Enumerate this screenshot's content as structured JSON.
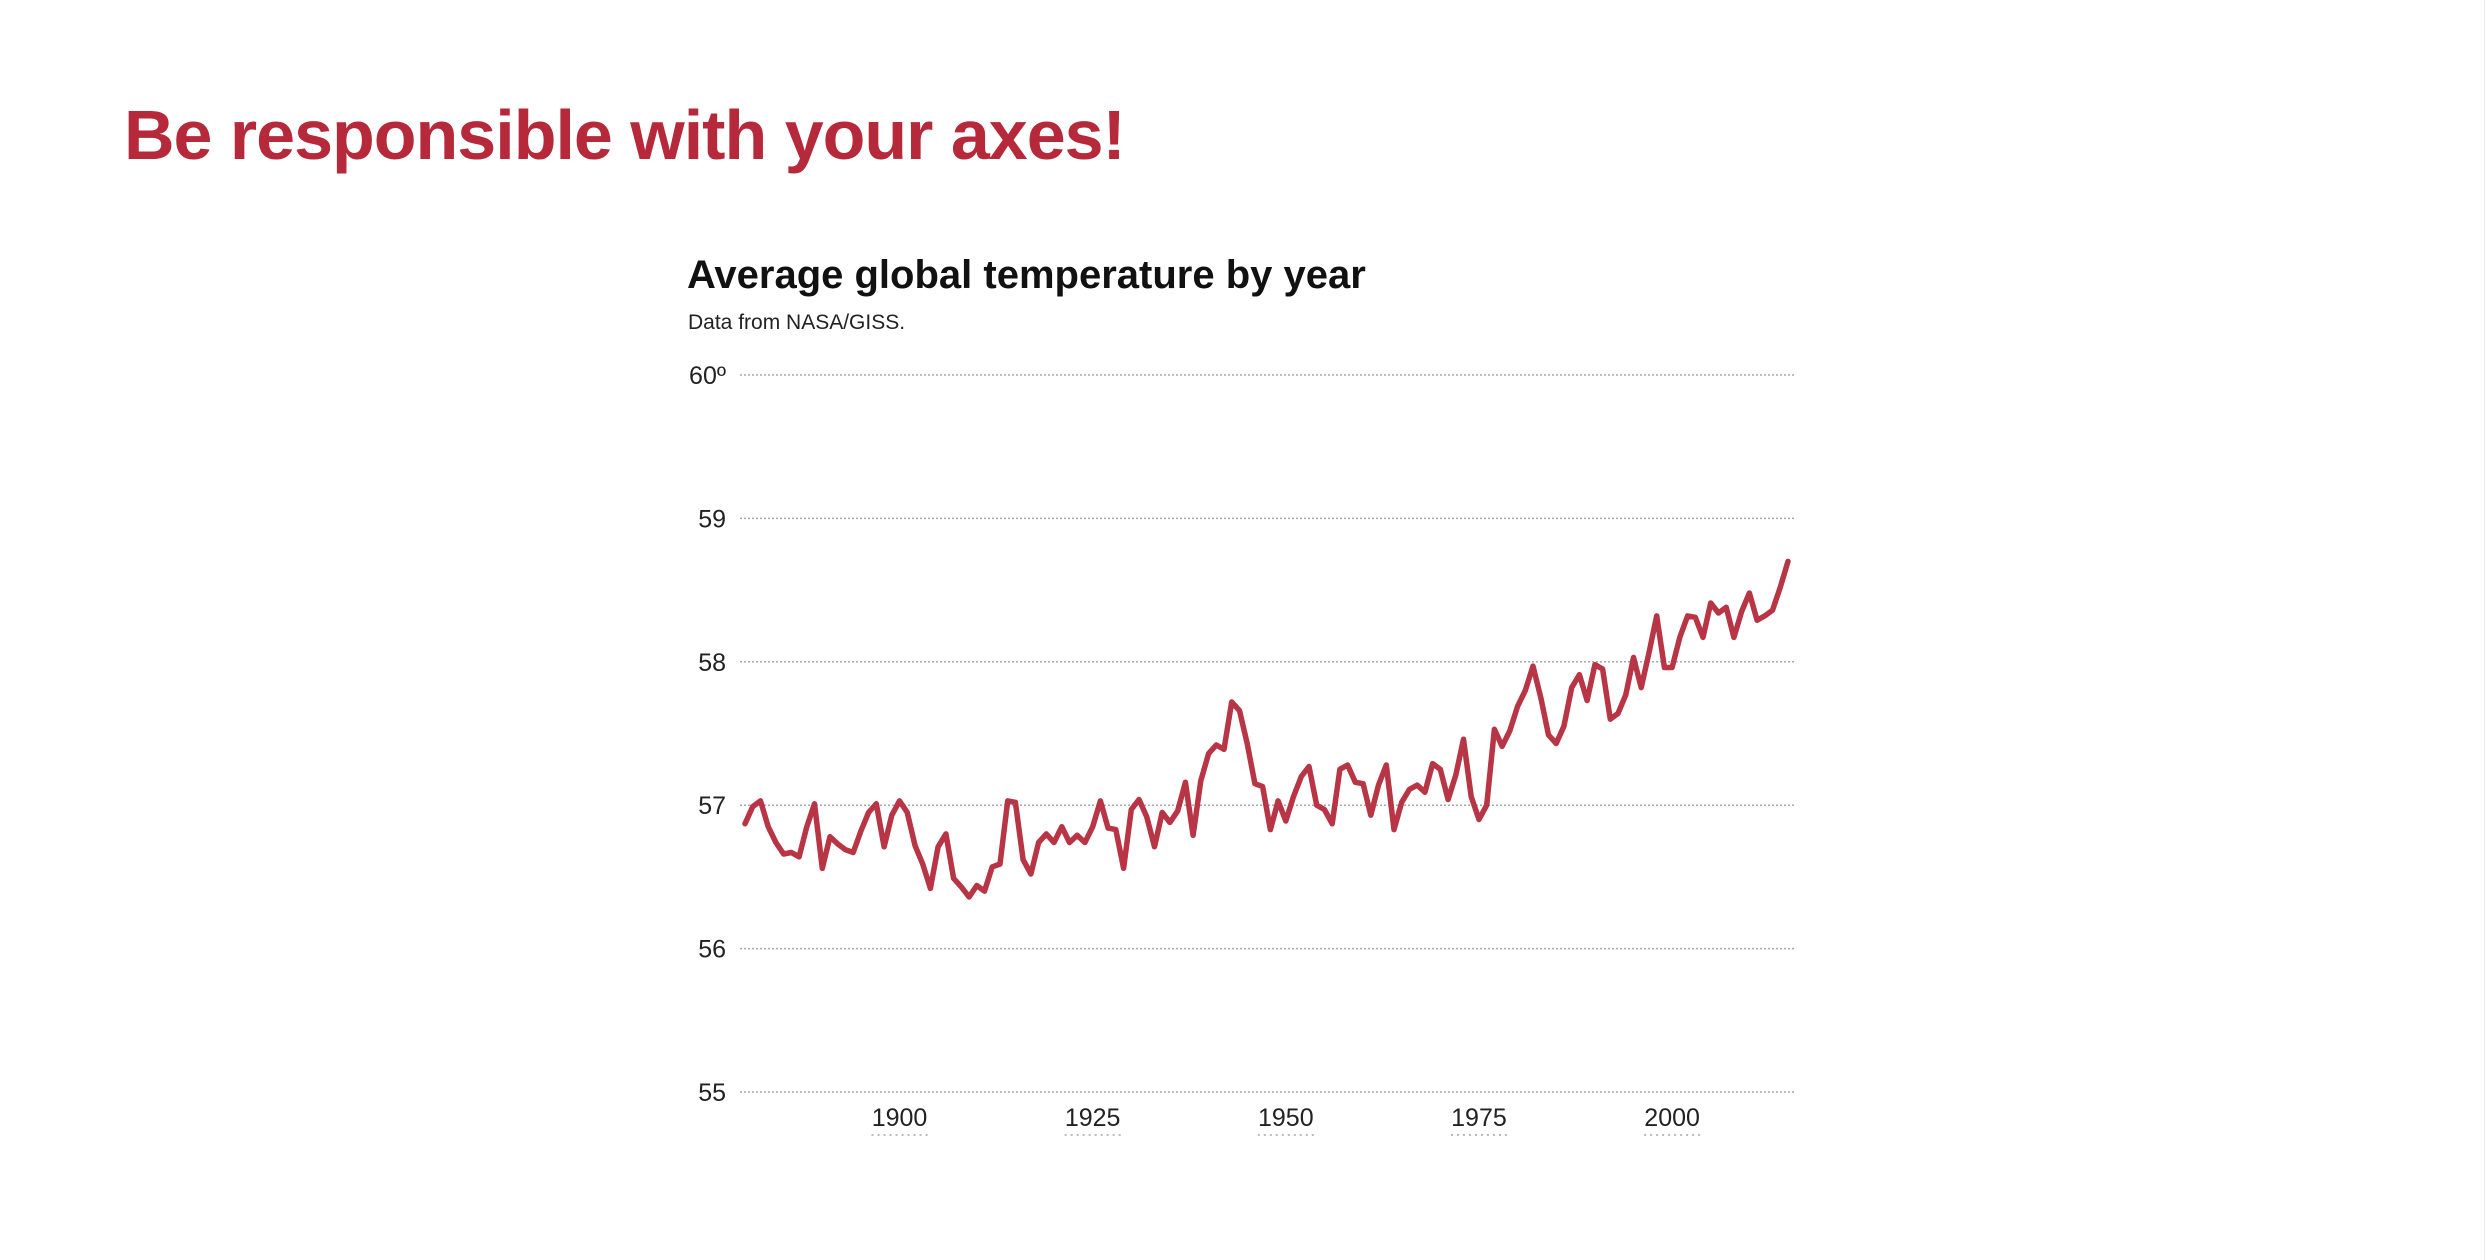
{
  "page": {
    "heading": "Be responsible with your axes!"
  },
  "colors": {
    "accent": "#b5293a",
    "line": "#b73545",
    "grid": "#a8a8a8",
    "text": "#222222"
  },
  "chart_data": {
    "type": "line",
    "title": "Average global temperature by year",
    "subtitle": "Data from NASA/GISS.",
    "xlabel": "",
    "ylabel": "",
    "xlim": [
      1880,
      2015
    ],
    "ylim": [
      55,
      60
    ],
    "y_ticks": [
      {
        "value": 60,
        "label": "60º"
      },
      {
        "value": 59,
        "label": "59"
      },
      {
        "value": 58,
        "label": "58"
      },
      {
        "value": 57,
        "label": "57"
      },
      {
        "value": 56,
        "label": "56"
      },
      {
        "value": 55,
        "label": "55"
      }
    ],
    "x_ticks": [
      {
        "value": 1900,
        "label": "1900"
      },
      {
        "value": 1925,
        "label": "1925"
      },
      {
        "value": 1950,
        "label": "1950"
      },
      {
        "value": 1975,
        "label": "1975"
      },
      {
        "value": 2000,
        "label": "2000"
      }
    ],
    "grid": "horizontal-dotted",
    "legend": "none",
    "series": [
      {
        "x": [
          1880,
          1881,
          1882,
          1883,
          1884,
          1885,
          1886,
          1887,
          1888,
          1889,
          1890,
          1891,
          1892,
          1893,
          1894,
          1895,
          1896,
          1897,
          1898,
          1899,
          1900,
          1901,
          1902,
          1903,
          1904,
          1905,
          1906,
          1907,
          1908,
          1909,
          1910,
          1911,
          1912,
          1913,
          1914,
          1915,
          1916,
          1917,
          1918,
          1919,
          1920,
          1921,
          1922,
          1923,
          1924,
          1925,
          1926,
          1927,
          1928,
          1929,
          1930,
          1931,
          1932,
          1933,
          1934,
          1935,
          1936,
          1937,
          1938,
          1939,
          1940,
          1941,
          1942,
          1943,
          1944,
          1945,
          1946,
          1947,
          1948,
          1949,
          1950,
          1951,
          1952,
          1953,
          1954,
          1955,
          1956,
          1957,
          1958,
          1959,
          1960,
          1961,
          1962,
          1963,
          1964,
          1965,
          1966,
          1967,
          1968,
          1969,
          1970,
          1971,
          1972,
          1973,
          1974,
          1975,
          1976,
          1977,
          1978,
          1979,
          1980,
          1981,
          1982,
          1983,
          1984,
          1985,
          1986,
          1987,
          1988,
          1989,
          1990,
          1991,
          1992,
          1993,
          1994,
          1995,
          1996,
          1997,
          1998,
          1999,
          2000,
          2001,
          2002,
          2003,
          2004,
          2005,
          2006,
          2007,
          2008,
          2009,
          2010,
          2011,
          2012,
          2013,
          2014,
          2015
        ],
        "values": [
          56.87,
          56.99,
          57.03,
          56.85,
          56.74,
          56.66,
          56.67,
          56.64,
          56.85,
          57.01,
          56.56,
          56.78,
          56.73,
          56.69,
          56.67,
          56.82,
          56.95,
          57.01,
          56.71,
          56.93,
          57.03,
          56.95,
          56.72,
          56.59,
          56.42,
          56.71,
          56.8,
          56.49,
          56.43,
          56.36,
          56.44,
          56.4,
          56.57,
          56.59,
          57.03,
          57.02,
          56.62,
          56.52,
          56.74,
          56.8,
          56.74,
          56.85,
          56.74,
          56.79,
          56.74,
          56.85,
          57.03,
          56.84,
          56.83,
          56.56,
          56.97,
          57.04,
          56.92,
          56.71,
          56.95,
          56.88,
          56.96,
          57.16,
          56.79,
          57.17,
          57.36,
          57.42,
          57.39,
          57.72,
          57.66,
          57.43,
          57.15,
          57.13,
          56.83,
          57.03,
          56.89,
          57.06,
          57.2,
          57.27,
          57.0,
          56.97,
          56.87,
          57.25,
          57.28,
          57.16,
          57.15,
          56.93,
          57.14,
          57.28,
          56.83,
          57.02,
          57.11,
          57.14,
          57.09,
          57.29,
          57.25,
          57.04,
          57.21,
          57.46,
          57.06,
          56.9,
          57.0,
          57.53,
          57.41,
          57.52,
          57.69,
          57.8,
          57.97,
          57.75,
          57.49,
          57.43,
          57.55,
          57.82,
          57.91,
          57.73,
          57.98,
          57.95,
          57.6,
          57.64,
          57.77,
          58.03,
          57.82,
          58.06,
          58.32,
          57.96,
          57.96,
          58.17,
          58.32,
          58.31,
          58.17,
          58.41,
          58.34,
          58.38,
          58.17,
          58.35,
          58.48,
          58.29,
          58.32,
          58.36,
          58.52,
          58.7
        ]
      }
    ]
  }
}
